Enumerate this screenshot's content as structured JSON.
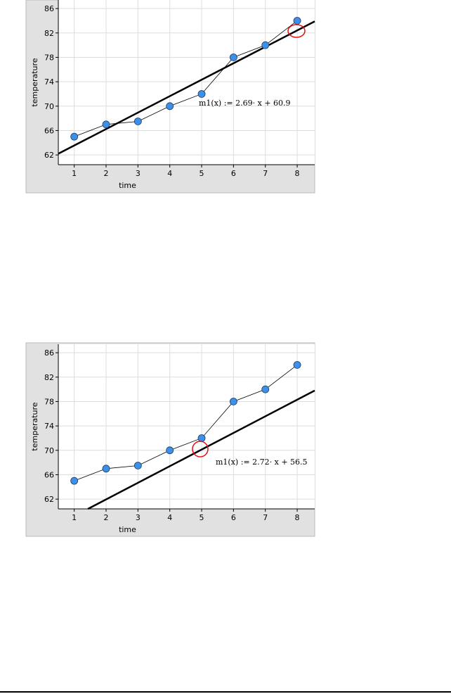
{
  "chart_data": [
    {
      "type": "line",
      "x_label": "time",
      "y_label": "temperature",
      "x": [
        1,
        2,
        3,
        4,
        5,
        6,
        7,
        8
      ],
      "series": [
        {
          "color": "#3d8fe8",
          "values": [
            65,
            67,
            67.5,
            70,
            72,
            78,
            80,
            84
          ]
        }
      ],
      "fit_line": {
        "x": [
          0.5,
          8.55
        ],
        "values": [
          62.2,
          83.9
        ],
        "color": "#000000"
      },
      "annotation": "m1(x) := 2.69· x + 60.9",
      "xlim": [
        0.5,
        8.55
      ],
      "xticks": [
        1,
        2,
        3,
        4,
        5,
        6,
        7,
        8
      ],
      "ylim": [
        60.4,
        87.4
      ],
      "yticks": [
        62,
        66,
        70,
        74,
        78,
        82,
        86
      ],
      "grid": true
    },
    {
      "type": "line",
      "x_label": "time",
      "y_label": "temperature",
      "x": [
        1,
        2,
        3,
        4,
        5,
        6,
        7,
        8
      ],
      "series": [
        {
          "color": "#3d8fe8",
          "values": [
            65,
            67,
            67.5,
            70,
            72,
            78,
            80,
            84
          ]
        }
      ],
      "fit_line": {
        "x": [
          1.43,
          8.55
        ],
        "values": [
          60.4,
          79.8
        ],
        "color": "#000000"
      },
      "annotation": "m1(x) := 2.72· x + 56.5",
      "xlim": [
        0.5,
        8.55
      ],
      "xticks": [
        1,
        2,
        3,
        4,
        5,
        6,
        7,
        8
      ],
      "ylim": [
        60.4,
        87.4
      ],
      "yticks": [
        62,
        66,
        70,
        74,
        78,
        82,
        86
      ],
      "grid": true
    }
  ]
}
